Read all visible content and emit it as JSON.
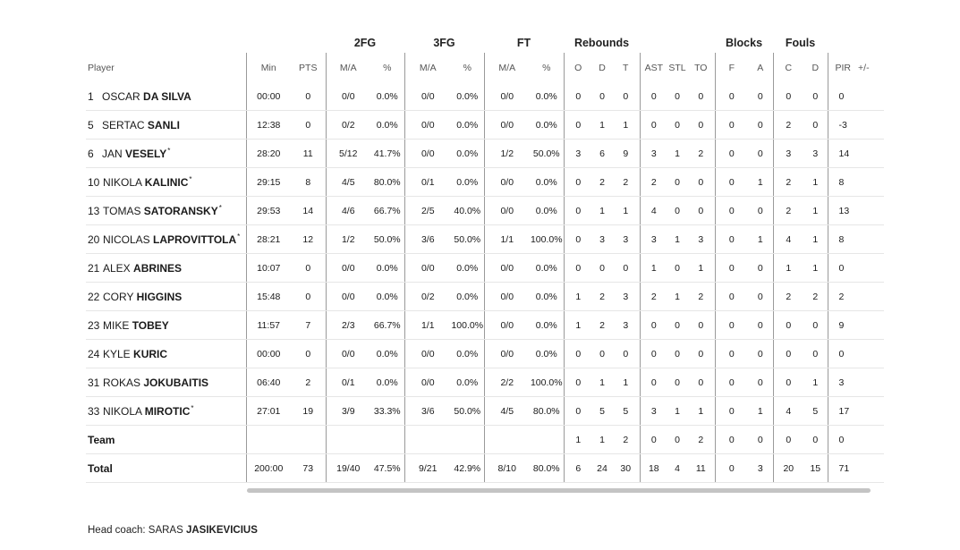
{
  "headers": {
    "groups": {
      "fg2": "2FG",
      "fg3": "3FG",
      "ft": "FT",
      "reb": "Rebounds",
      "blk": "Blocks",
      "fouls": "Fouls"
    },
    "player": "Player",
    "min": "Min",
    "pts": "PTS",
    "ma": "M/A",
    "pct": "%",
    "o": "O",
    "d": "D",
    "t": "T",
    "ast": "AST",
    "stl": "STL",
    "to": "TO",
    "f": "F",
    "a": "A",
    "c": "C",
    "fd": "D",
    "pir": "PIR",
    "pm": "+/-"
  },
  "players": [
    {
      "num": "1",
      "first": "OSCAR",
      "last": "DA SILVA",
      "starter": false,
      "min": "00:00",
      "pts": "0",
      "fg2": "0/0",
      "fg2p": "0.0%",
      "fg3": "0/0",
      "fg3p": "0.0%",
      "ft": "0/0",
      "ftp": "0.0%",
      "o": "0",
      "d": "0",
      "t": "0",
      "ast": "0",
      "stl": "0",
      "to": "0",
      "bf": "0",
      "ba": "0",
      "fc": "0",
      "fd": "0",
      "pir": "0",
      "pm": ""
    },
    {
      "num": "5",
      "first": "SERTAC",
      "last": "SANLI",
      "starter": false,
      "min": "12:38",
      "pts": "0",
      "fg2": "0/2",
      "fg2p": "0.0%",
      "fg3": "0/0",
      "fg3p": "0.0%",
      "ft": "0/0",
      "ftp": "0.0%",
      "o": "0",
      "d": "1",
      "t": "1",
      "ast": "0",
      "stl": "0",
      "to": "0",
      "bf": "0",
      "ba": "0",
      "fc": "2",
      "fd": "0",
      "pir": "-3",
      "pm": ""
    },
    {
      "num": "6",
      "first": "JAN",
      "last": "VESELY",
      "starter": true,
      "min": "28:20",
      "pts": "11",
      "fg2": "5/12",
      "fg2p": "41.7%",
      "fg3": "0/0",
      "fg3p": "0.0%",
      "ft": "1/2",
      "ftp": "50.0%",
      "o": "3",
      "d": "6",
      "t": "9",
      "ast": "3",
      "stl": "1",
      "to": "2",
      "bf": "0",
      "ba": "0",
      "fc": "3",
      "fd": "3",
      "pir": "14",
      "pm": ""
    },
    {
      "num": "10",
      "first": "NIKOLA",
      "last": "KALINIC",
      "starter": true,
      "min": "29:15",
      "pts": "8",
      "fg2": "4/5",
      "fg2p": "80.0%",
      "fg3": "0/1",
      "fg3p": "0.0%",
      "ft": "0/0",
      "ftp": "0.0%",
      "o": "0",
      "d": "2",
      "t": "2",
      "ast": "2",
      "stl": "0",
      "to": "0",
      "bf": "0",
      "ba": "1",
      "fc": "2",
      "fd": "1",
      "pir": "8",
      "pm": ""
    },
    {
      "num": "13",
      "first": "TOMAS",
      "last": "SATORANSKY",
      "starter": true,
      "min": "29:53",
      "pts": "14",
      "fg2": "4/6",
      "fg2p": "66.7%",
      "fg3": "2/5",
      "fg3p": "40.0%",
      "ft": "0/0",
      "ftp": "0.0%",
      "o": "0",
      "d": "1",
      "t": "1",
      "ast": "4",
      "stl": "0",
      "to": "0",
      "bf": "0",
      "ba": "0",
      "fc": "2",
      "fd": "1",
      "pir": "13",
      "pm": ""
    },
    {
      "num": "20",
      "first": "NICOLAS",
      "last": "LAPROVITTOLA",
      "starter": true,
      "min": "28:21",
      "pts": "12",
      "fg2": "1/2",
      "fg2p": "50.0%",
      "fg3": "3/6",
      "fg3p": "50.0%",
      "ft": "1/1",
      "ftp": "100.0%",
      "o": "0",
      "d": "3",
      "t": "3",
      "ast": "3",
      "stl": "1",
      "to": "3",
      "bf": "0",
      "ba": "1",
      "fc": "4",
      "fd": "1",
      "pir": "8",
      "pm": ""
    },
    {
      "num": "21",
      "first": "ALEX",
      "last": "ABRINES",
      "starter": false,
      "min": "10:07",
      "pts": "0",
      "fg2": "0/0",
      "fg2p": "0.0%",
      "fg3": "0/0",
      "fg3p": "0.0%",
      "ft": "0/0",
      "ftp": "0.0%",
      "o": "0",
      "d": "0",
      "t": "0",
      "ast": "1",
      "stl": "0",
      "to": "1",
      "bf": "0",
      "ba": "0",
      "fc": "1",
      "fd": "1",
      "pir": "0",
      "pm": ""
    },
    {
      "num": "22",
      "first": "CORY",
      "last": "HIGGINS",
      "starter": false,
      "min": "15:48",
      "pts": "0",
      "fg2": "0/0",
      "fg2p": "0.0%",
      "fg3": "0/2",
      "fg3p": "0.0%",
      "ft": "0/0",
      "ftp": "0.0%",
      "o": "1",
      "d": "2",
      "t": "3",
      "ast": "2",
      "stl": "1",
      "to": "2",
      "bf": "0",
      "ba": "0",
      "fc": "2",
      "fd": "2",
      "pir": "2",
      "pm": ""
    },
    {
      "num": "23",
      "first": "MIKE",
      "last": "TOBEY",
      "starter": false,
      "min": "11:57",
      "pts": "7",
      "fg2": "2/3",
      "fg2p": "66.7%",
      "fg3": "1/1",
      "fg3p": "100.0%",
      "ft": "0/0",
      "ftp": "0.0%",
      "o": "1",
      "d": "2",
      "t": "3",
      "ast": "0",
      "stl": "0",
      "to": "0",
      "bf": "0",
      "ba": "0",
      "fc": "0",
      "fd": "0",
      "pir": "9",
      "pm": ""
    },
    {
      "num": "24",
      "first": "KYLE",
      "last": "KURIC",
      "starter": false,
      "min": "00:00",
      "pts": "0",
      "fg2": "0/0",
      "fg2p": "0.0%",
      "fg3": "0/0",
      "fg3p": "0.0%",
      "ft": "0/0",
      "ftp": "0.0%",
      "o": "0",
      "d": "0",
      "t": "0",
      "ast": "0",
      "stl": "0",
      "to": "0",
      "bf": "0",
      "ba": "0",
      "fc": "0",
      "fd": "0",
      "pir": "0",
      "pm": ""
    },
    {
      "num": "31",
      "first": "ROKAS",
      "last": "JOKUBAITIS",
      "starter": false,
      "min": "06:40",
      "pts": "2",
      "fg2": "0/1",
      "fg2p": "0.0%",
      "fg3": "0/0",
      "fg3p": "0.0%",
      "ft": "2/2",
      "ftp": "100.0%",
      "o": "0",
      "d": "1",
      "t": "1",
      "ast": "0",
      "stl": "0",
      "to": "0",
      "bf": "0",
      "ba": "0",
      "fc": "0",
      "fd": "1",
      "pir": "3",
      "pm": ""
    },
    {
      "num": "33",
      "first": "NIKOLA",
      "last": "MIROTIC",
      "starter": true,
      "min": "27:01",
      "pts": "19",
      "fg2": "3/9",
      "fg2p": "33.3%",
      "fg3": "3/6",
      "fg3p": "50.0%",
      "ft": "4/5",
      "ftp": "80.0%",
      "o": "0",
      "d": "5",
      "t": "5",
      "ast": "3",
      "stl": "1",
      "to": "1",
      "bf": "0",
      "ba": "1",
      "fc": "4",
      "fd": "5",
      "pir": "17",
      "pm": ""
    }
  ],
  "team": {
    "label": "Team",
    "min": "",
    "pts": "",
    "fg2": "",
    "fg2p": "",
    "fg3": "",
    "fg3p": "",
    "ft": "",
    "ftp": "",
    "o": "1",
    "d": "1",
    "t": "2",
    "ast": "0",
    "stl": "0",
    "to": "2",
    "bf": "0",
    "ba": "0",
    "fc": "0",
    "fd": "0",
    "pir": "0",
    "pm": ""
  },
  "total": {
    "label": "Total",
    "min": "200:00",
    "pts": "73",
    "fg2": "19/40",
    "fg2p": "47.5%",
    "fg3": "9/21",
    "fg3p": "42.9%",
    "ft": "8/10",
    "ftp": "80.0%",
    "o": "6",
    "d": "24",
    "t": "30",
    "ast": "18",
    "stl": "4",
    "to": "11",
    "bf": "0",
    "ba": "3",
    "fc": "20",
    "fd": "15",
    "pir": "71",
    "pm": ""
  },
  "coach": {
    "label": "Head coach:",
    "first": "SARAS",
    "last": "JASIKEVICIUS"
  },
  "colors": {
    "divider": "#9a9a9a",
    "row_border": "#e6e6e6",
    "scrollbar": "#c4c4c4"
  }
}
